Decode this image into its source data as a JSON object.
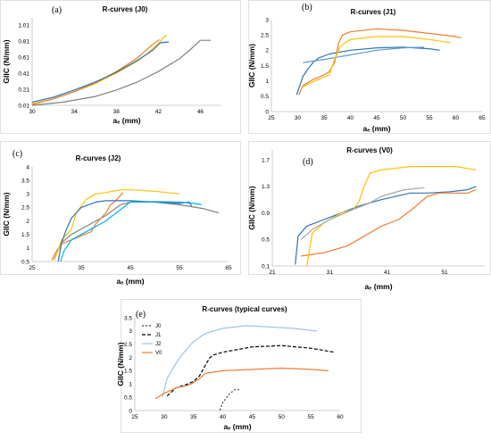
{
  "chart_data": [
    {
      "type": "line",
      "label": "(a)",
      "title": "R-curves (J0)",
      "xlabel": "aₑ (mm)",
      "ylabel": "GIIC (N/mm)",
      "xlim": [
        30,
        48
      ],
      "ylim": [
        0.01,
        1.1
      ],
      "xticks": [
        "30",
        "34",
        "38",
        "42",
        "46"
      ],
      "yticks": [
        "0.01",
        "0.21",
        "0.41",
        "0.61",
        "0.81",
        "1.01"
      ],
      "grid": false,
      "series": [
        {
          "color": "#808080",
          "x": [
            30,
            33,
            36,
            38,
            40,
            42,
            44,
            45,
            46,
            47
          ],
          "y": [
            0.01,
            0.05,
            0.12,
            0.2,
            0.3,
            0.43,
            0.59,
            0.7,
            0.82,
            0.82
          ]
        },
        {
          "color": "#ffc000",
          "x": [
            30,
            32,
            34,
            36,
            38,
            40,
            41,
            42,
            42.6,
            42.8
          ],
          "y": [
            0.03,
            0.09,
            0.18,
            0.28,
            0.41,
            0.56,
            0.66,
            0.78,
            0.87,
            0.88
          ]
        },
        {
          "color": "#ed7d31",
          "x": [
            30,
            32,
            34,
            36,
            38,
            40,
            41.2,
            42.1
          ],
          "y": [
            0.02,
            0.09,
            0.18,
            0.29,
            0.43,
            0.6,
            0.74,
            0.83
          ]
        },
        {
          "color": "#2e75b6",
          "x": [
            30,
            32,
            34,
            36,
            38,
            40,
            41.5,
            42.2,
            43
          ],
          "y": [
            0.05,
            0.11,
            0.2,
            0.3,
            0.42,
            0.57,
            0.7,
            0.79,
            0.8
          ]
        }
      ]
    },
    {
      "type": "line",
      "label": "(b)",
      "title": "R-curves (J1)",
      "xlabel": "aₑ (mm)",
      "ylabel": "GIIC (N/mm)",
      "xlim": [
        25,
        65
      ],
      "ylim": [
        0,
        3
      ],
      "xticks": [
        "25",
        "30",
        "35",
        "40",
        "45",
        "50",
        "55",
        "60",
        "65"
      ],
      "yticks": [
        "0",
        "0.5",
        "1",
        "1.5",
        "2",
        "2.5",
        "3"
      ],
      "grid": false,
      "series": [
        {
          "color": "#2e75b6",
          "x": [
            29.8,
            30.3,
            31,
            32,
            33,
            34,
            36,
            40,
            45,
            50,
            55,
            57
          ],
          "y": [
            0.55,
            0.8,
            1.15,
            1.4,
            1.62,
            1.75,
            1.88,
            2.0,
            2.08,
            2.1,
            2.05,
            2.0
          ]
        },
        {
          "color": "#5b9bd5",
          "x": [
            31,
            35,
            40,
            45,
            50,
            54
          ],
          "y": [
            1.6,
            1.7,
            1.85,
            2.0,
            2.08,
            2.1
          ]
        },
        {
          "color": "#ed7d31",
          "x": [
            30.2,
            31,
            33,
            35,
            36,
            37,
            37.8,
            38.5,
            40,
            45,
            50,
            55,
            60,
            61
          ],
          "y": [
            0.55,
            0.85,
            1.05,
            1.2,
            1.3,
            1.6,
            2.25,
            2.5,
            2.6,
            2.7,
            2.65,
            2.55,
            2.45,
            2.4
          ]
        },
        {
          "color": "#ffc000",
          "x": [
            31,
            32,
            34,
            36,
            37,
            38,
            39,
            40,
            45,
            50,
            55,
            59
          ],
          "y": [
            0.8,
            0.9,
            1.05,
            1.2,
            1.7,
            2.1,
            2.25,
            2.35,
            2.45,
            2.45,
            2.35,
            2.25
          ]
        }
      ]
    },
    {
      "type": "line",
      "label": "(c)",
      "title": "R-curves (J2)",
      "xlabel": "aₑ (mm)",
      "ylabel": "GIIC (N/mm)",
      "xlim": [
        25,
        65
      ],
      "ylim": [
        0.5,
        4
      ],
      "xticks": [
        "25",
        "35",
        "45",
        "55",
        "65"
      ],
      "yticks": [
        "0.5",
        "1",
        "1.5",
        "2",
        "2.5",
        "3",
        "3.5",
        "4"
      ],
      "grid": false,
      "series": [
        {
          "color": "#808080",
          "x": [
            29.5,
            31,
            33,
            36,
            40,
            43,
            45,
            50,
            55,
            60,
            63
          ],
          "y": [
            0.6,
            1.2,
            1.5,
            1.8,
            2.2,
            2.6,
            2.7,
            2.7,
            2.6,
            2.45,
            2.3
          ]
        },
        {
          "color": "#ed7d31",
          "x": [
            29,
            30,
            31,
            33,
            35,
            37,
            38,
            40,
            41,
            42,
            43.5
          ],
          "y": [
            0.55,
            0.9,
            1.15,
            1.3,
            1.45,
            1.6,
            1.9,
            2.3,
            2.6,
            2.75,
            3.05
          ]
        },
        {
          "color": "#ffc000",
          "x": [
            29.5,
            31,
            33,
            34,
            36,
            38,
            40,
            43,
            45,
            50,
            55
          ],
          "y": [
            0.55,
            1.3,
            1.7,
            2.3,
            2.8,
            3.0,
            3.05,
            3.15,
            3.15,
            3.1,
            3.0
          ]
        },
        {
          "color": "#2e75b6",
          "x": [
            30.3,
            31,
            32,
            33,
            35,
            38,
            40,
            45,
            50,
            55,
            57,
            57.5
          ],
          "y": [
            0.5,
            1.2,
            1.7,
            2.1,
            2.5,
            2.7,
            2.75,
            2.75,
            2.7,
            2.65,
            2.7,
            2.55
          ]
        },
        {
          "color": "#00b0f0",
          "x": [
            30.8,
            31.5,
            33,
            35,
            38,
            40,
            45,
            50,
            55,
            58,
            59.5
          ],
          "y": [
            0.5,
            0.9,
            1.3,
            1.5,
            1.8,
            2.0,
            2.7,
            2.72,
            2.7,
            2.65,
            2.6
          ]
        }
      ]
    },
    {
      "type": "line",
      "label": "(d)",
      "title": "R-curves (V0)",
      "xlabel": "aₑ (mm)",
      "ylabel": "GIIC (N/mm)",
      "xlim": [
        21,
        58
      ],
      "ylim": [
        0.1,
        1.85
      ],
      "xticks": [
        "21",
        "31",
        "41",
        "51"
      ],
      "yticks": [
        "0.1",
        "0.5",
        "0.9",
        "1.3",
        "1.7"
      ],
      "grid": false,
      "series": [
        {
          "color": "#2e75b6",
          "x": [
            25,
            25.5,
            27,
            30,
            33,
            36,
            40,
            45,
            48,
            52,
            55,
            56.5
          ],
          "y": [
            0.12,
            0.55,
            0.7,
            0.8,
            0.9,
            1.0,
            1.1,
            1.2,
            1.2,
            1.22,
            1.25,
            1.3
          ]
        },
        {
          "color": "#ed7d31",
          "x": [
            26,
            30,
            34,
            36,
            40,
            43,
            44.5,
            46,
            48,
            50,
            55,
            56.5
          ],
          "y": [
            0.25,
            0.3,
            0.4,
            0.5,
            0.7,
            0.8,
            0.9,
            1.0,
            1.15,
            1.2,
            1.2,
            1.25
          ]
        },
        {
          "color": "#ffc000",
          "x": [
            27,
            28,
            30,
            33,
            35,
            36,
            37,
            38,
            40,
            45,
            50,
            53,
            56.5
          ],
          "y": [
            0.1,
            0.6,
            0.75,
            0.9,
            0.95,
            1.05,
            1.3,
            1.5,
            1.55,
            1.6,
            1.6,
            1.6,
            1.55
          ]
        },
        {
          "color": "#a5a5a5",
          "x": [
            26,
            28,
            31,
            35,
            38,
            40,
            44,
            47.5
          ],
          "y": [
            0.5,
            0.65,
            0.8,
            0.95,
            1.05,
            1.15,
            1.25,
            1.28
          ]
        }
      ]
    },
    {
      "type": "line",
      "label": "(e)",
      "title": "R-curves (typical curves)",
      "xlabel": "aₑ (mm)",
      "ylabel": "GIIC (N/mm)",
      "xlim": [
        25,
        60
      ],
      "ylim": [
        0,
        3.5
      ],
      "xticks": [
        "25",
        "30",
        "35",
        "40",
        "45",
        "50",
        "55",
        "60"
      ],
      "yticks": [
        "0",
        "0.5",
        "1",
        "1.5",
        "2",
        "2.5",
        "3",
        "3.5"
      ],
      "grid": false,
      "legend_position": "top-left",
      "series": [
        {
          "name": "J0",
          "color": "#404040",
          "dash": "2,2",
          "x": [
            39.5,
            40,
            41,
            42,
            42.8
          ],
          "y": [
            0.01,
            0.3,
            0.6,
            0.78,
            0.78
          ]
        },
        {
          "name": "J1",
          "color": "#000000",
          "dash": "4,2",
          "x": [
            30.5,
            32,
            34,
            35,
            36,
            37,
            37.8,
            38.5,
            40,
            45,
            50,
            55,
            59
          ],
          "y": [
            0.55,
            0.85,
            1.0,
            1.1,
            1.3,
            1.7,
            2.0,
            2.1,
            2.2,
            2.4,
            2.45,
            2.35,
            2.2
          ]
        },
        {
          "name": "J2",
          "color": "#9dc3e6",
          "dash": "",
          "x": [
            29.7,
            30.5,
            31.5,
            33,
            35,
            37,
            40,
            44,
            48,
            52,
            56
          ],
          "y": [
            0.5,
            1.2,
            1.6,
            2.1,
            2.6,
            2.9,
            3.1,
            3.2,
            3.15,
            3.1,
            3.0
          ]
        },
        {
          "name": "V0",
          "color": "#ed7d31",
          "dash": "",
          "x": [
            28.5,
            30,
            32,
            34,
            35,
            36,
            37,
            40,
            45,
            50,
            55,
            58
          ],
          "y": [
            0.45,
            0.65,
            0.85,
            0.95,
            1.05,
            1.2,
            1.4,
            1.5,
            1.55,
            1.6,
            1.55,
            1.5
          ]
        }
      ]
    }
  ]
}
